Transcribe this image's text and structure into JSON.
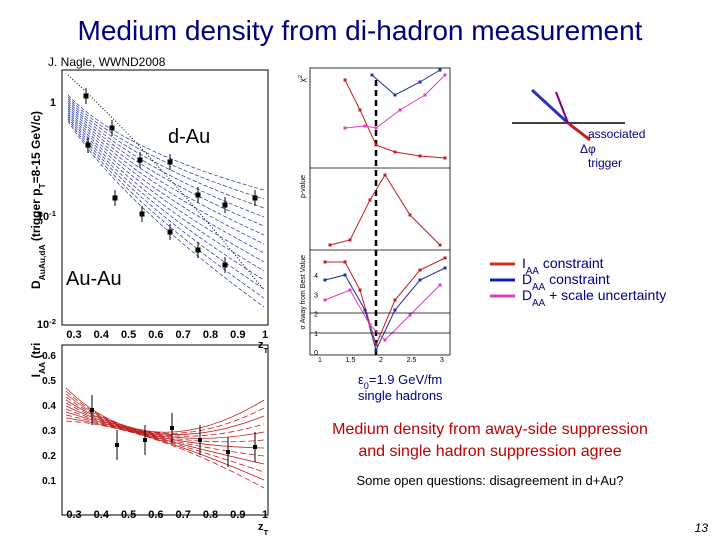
{
  "header": {
    "title": "Medium density from di-hadron measurement",
    "author": "J. Nagle, WWND2008"
  },
  "top_left_plot": {
    "y_label": [
      {
        "text": "D"
      },
      {
        "text": "AuAu,dA",
        "sub": true
      },
      {
        "text": " (trigger p"
      },
      {
        "text": "T",
        "sub": true
      },
      {
        "text": "=8-15 GeV/c)"
      }
    ],
    "y_ticks": [
      [
        {
          "text": "1"
        }
      ],
      [
        {
          "text": "10"
        },
        {
          "text": "-1",
          "sup": true
        }
      ],
      [
        {
          "text": "10"
        },
        {
          "text": "-2",
          "sup": true
        }
      ]
    ],
    "x_ticks": [
      "0.3",
      "0.4",
      "0.5",
      "0.6",
      "0.7",
      "0.8",
      "0.9",
      "1"
    ],
    "x_label": [
      {
        "text": "z"
      },
      {
        "text": "T",
        "sub": true
      }
    ],
    "dau_label": "d-Au",
    "auau_label": "Au-Au"
  },
  "bottom_left_plot": {
    "y_label": [
      {
        "text": "I"
      },
      {
        "text": "AA",
        "sub": true
      },
      {
        "text": " (tri"
      }
    ],
    "y_ticks": [
      "0.6",
      "0.5",
      "0.4",
      "0.3",
      "0.2",
      "0.1"
    ],
    "x_ticks": [
      "0.3",
      "0.4",
      "0.5",
      "0.6",
      "0.7",
      "0.8",
      "0.9",
      "1"
    ],
    "x_label": [
      {
        "text": "z"
      },
      {
        "text": "T",
        "sub": true
      }
    ]
  },
  "middle_plot": {
    "chi2_label": [
      {
        "text": "χ"
      },
      {
        "text": "2",
        "sup": true
      }
    ],
    "pvalue_label": "p-value",
    "sigma_label": "σ Away from Best Value",
    "y_ticks": [
      "4",
      "3",
      "2",
      "1",
      "0"
    ],
    "x_ticks": [
      "1",
      "1.5",
      "2",
      "2.5",
      "3"
    ]
  },
  "diagram": {
    "associated": "associated",
    "dphi": "Δφ",
    "trigger": "trigger"
  },
  "legend": [
    [
      {
        "text": "I"
      },
      {
        "text": "AA",
        "sub": true
      },
      {
        "text": " constraint"
      }
    ],
    [
      {
        "text": "D"
      },
      {
        "text": "AA",
        "sub": true
      },
      {
        "text": " constraint"
      }
    ],
    [
      {
        "text": "D"
      },
      {
        "text": "AA",
        "sub": true
      },
      {
        "text": " + scale uncertainty"
      }
    ]
  ],
  "result": {
    "epsilon": [
      {
        "text": "ε"
      },
      {
        "text": "0",
        "sub": true
      },
      {
        "text": "=1.9 GeV/fm"
      }
    ],
    "single": "single hadrons"
  },
  "conclusion": {
    "line1": "Medium density from away-side suppression",
    "line2": "and single hadron suppression agree"
  },
  "question": "Some open questions: disagreement in d+Au?",
  "page_number": "13"
}
